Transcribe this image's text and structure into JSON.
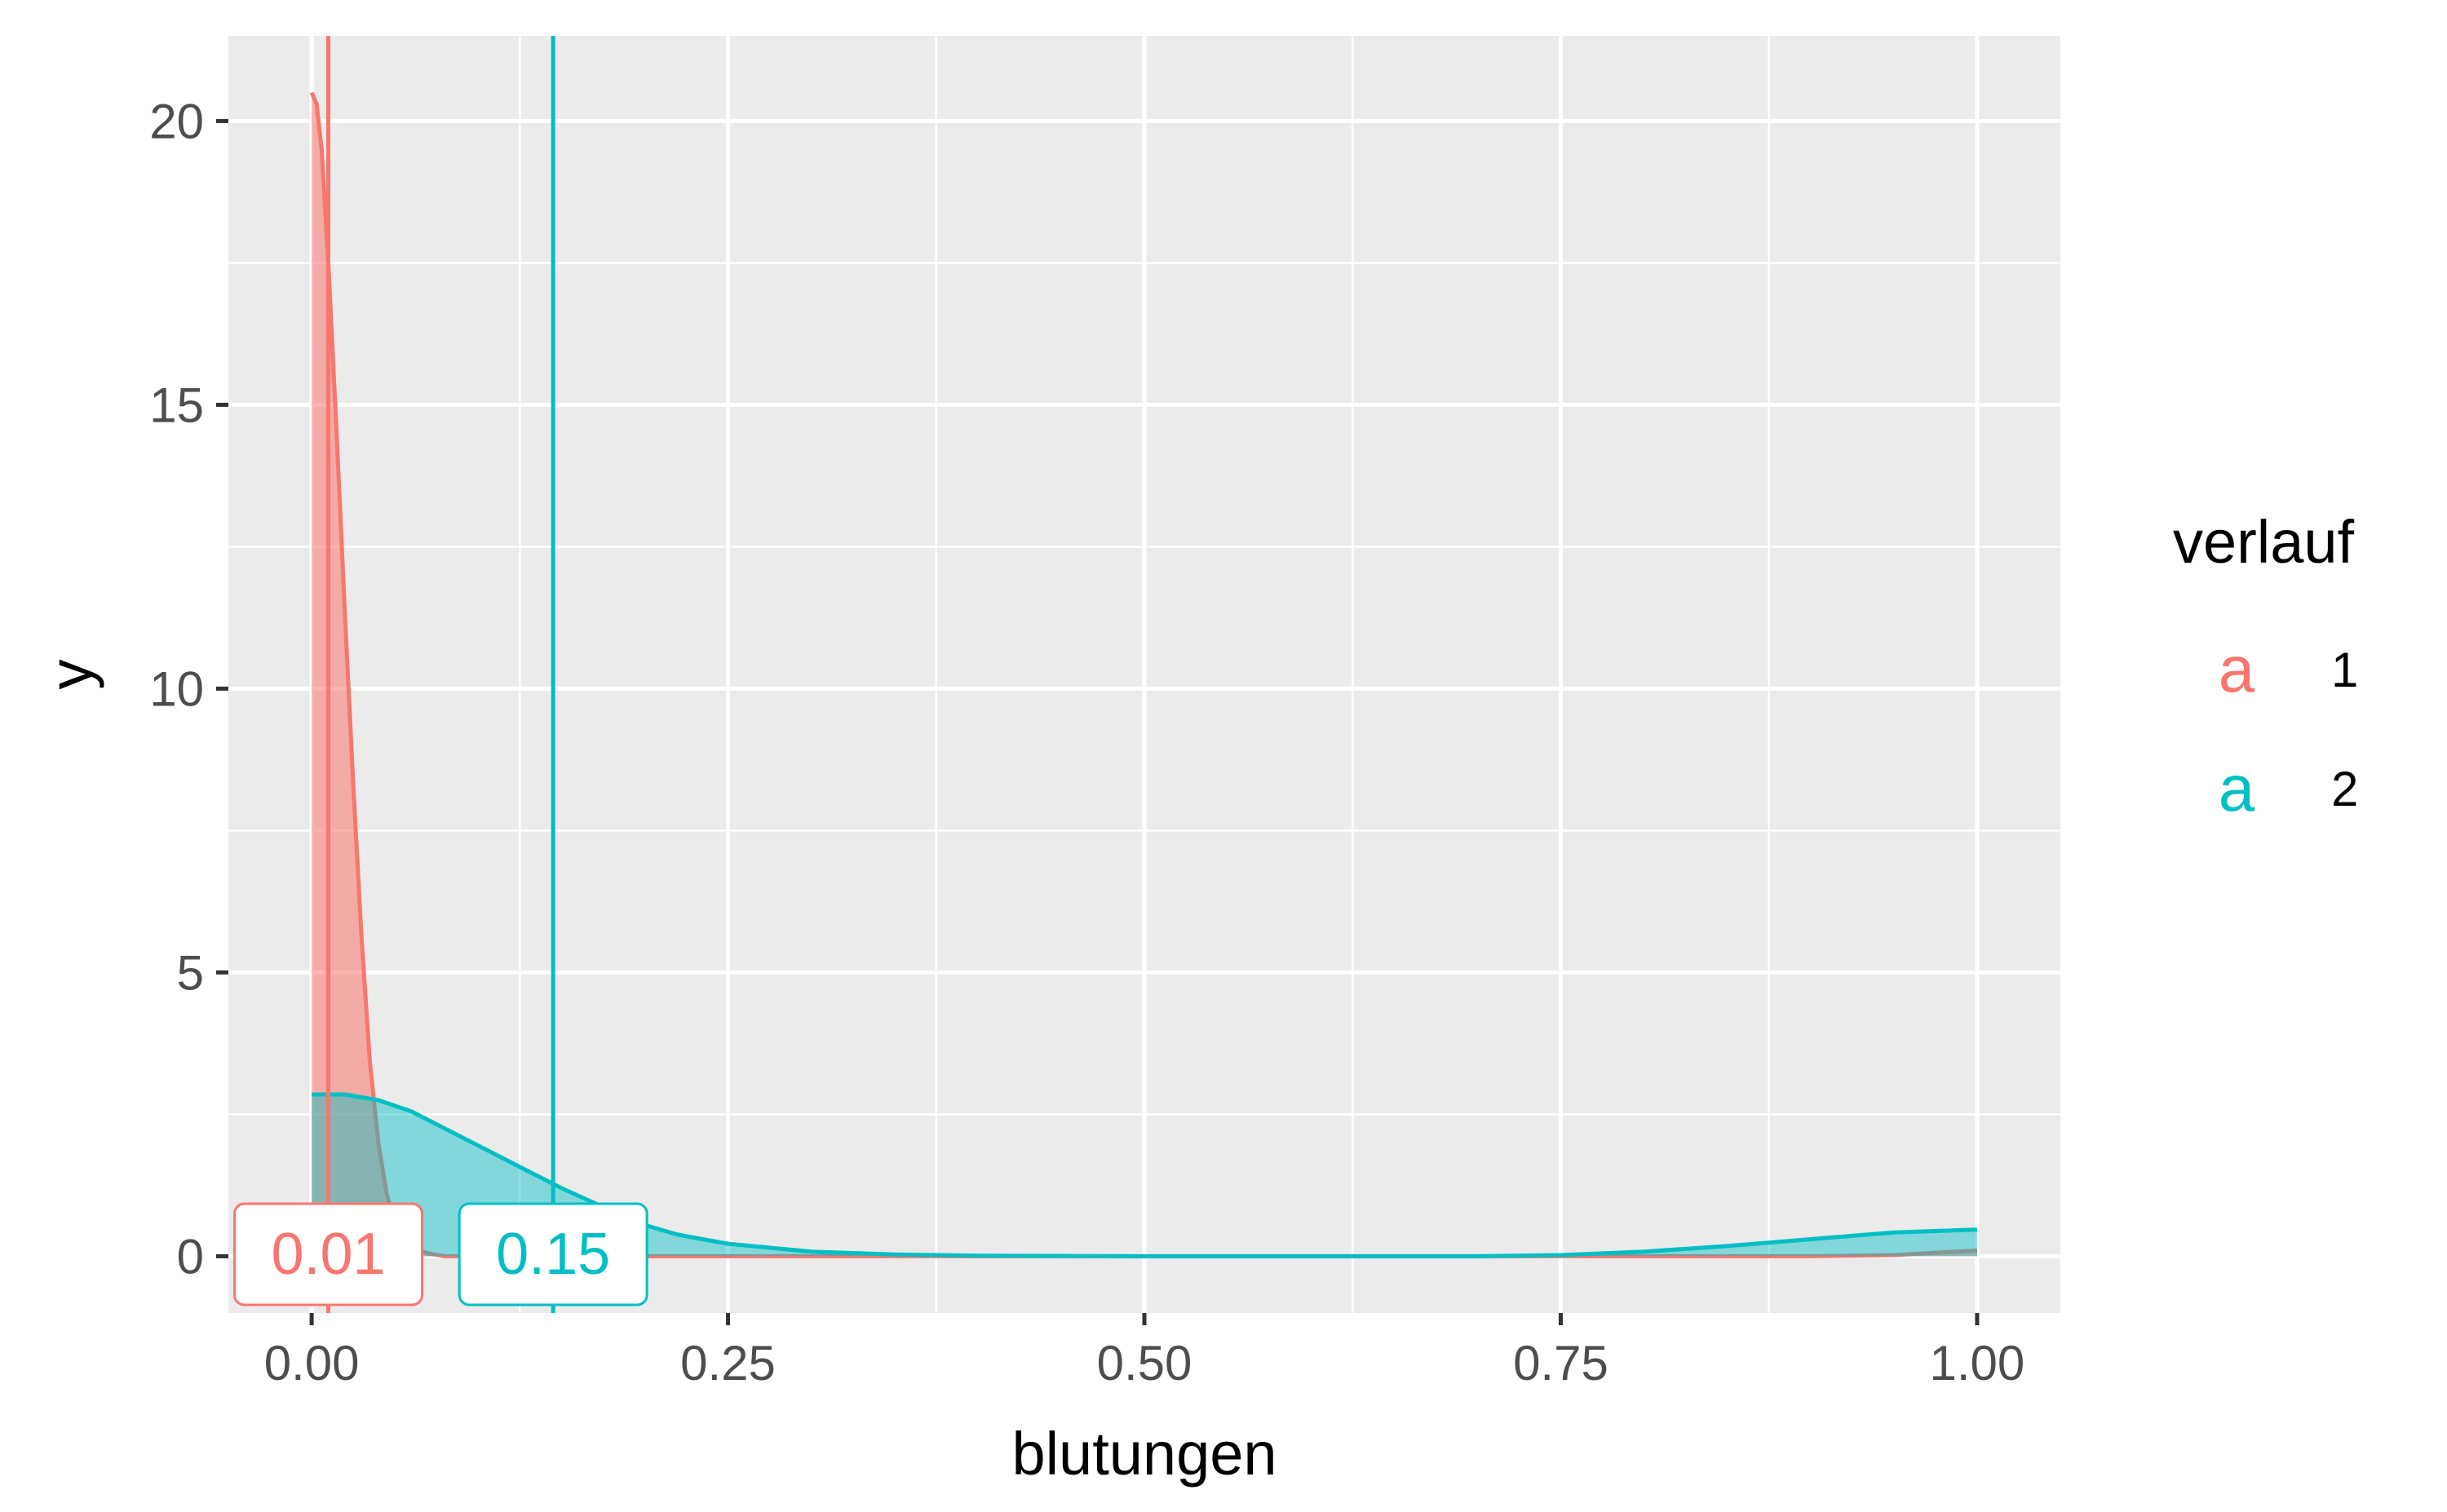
{
  "chart_data": {
    "type": "area",
    "xlabel": "blutungen",
    "ylabel": "y",
    "xlim": [
      -0.05,
      1.05
    ],
    "ylim": [
      -1.0,
      21.5
    ],
    "x_ticks": [
      0.0,
      0.25,
      0.5,
      0.75,
      1.0
    ],
    "x_tick_labels": [
      "0.00",
      "0.25",
      "0.50",
      "0.75",
      "1.00"
    ],
    "y_ticks": [
      0,
      5,
      10,
      15,
      20
    ],
    "y_tick_labels": [
      "0",
      "5",
      "10",
      "15",
      "20"
    ],
    "grid": true,
    "legend": {
      "title": "verlauf",
      "position": "right",
      "entries": [
        {
          "key_glyph": "a",
          "label": "1",
          "color": "#F8766D"
        },
        {
          "key_glyph": "a",
          "label": "2",
          "color": "#00BFC4"
        }
      ]
    },
    "series": [
      {
        "name": "1",
        "color": "#F8766D",
        "line_color": "#F8766D",
        "fill_opacity": 0.55,
        "x": [
          0.0,
          0.003,
          0.006,
          0.01,
          0.015,
          0.02,
          0.025,
          0.03,
          0.035,
          0.04,
          0.045,
          0.05,
          0.06,
          0.07,
          0.08,
          0.1,
          0.15,
          0.2,
          0.3,
          0.4,
          0.5,
          0.6,
          0.7,
          0.8,
          0.9,
          0.95,
          0.98,
          1.0
        ],
        "y": [
          20.5,
          20.3,
          19.5,
          17.5,
          14.5,
          11.3,
          8.3,
          5.6,
          3.4,
          2.0,
          1.1,
          0.55,
          0.15,
          0.05,
          0.0,
          0.0,
          0.0,
          0.0,
          0.0,
          0.0,
          0.0,
          0.0,
          0.0,
          0.0,
          0.0,
          0.02,
          0.07,
          0.1
        ],
        "mean": 0.01,
        "mean_label": "0.01"
      },
      {
        "name": "2",
        "color": "#00BFC4",
        "line_color": "#00BFC4",
        "fill_opacity": 0.45,
        "x": [
          0.0,
          0.02,
          0.04,
          0.06,
          0.08,
          0.1,
          0.12,
          0.15,
          0.18,
          0.2,
          0.22,
          0.25,
          0.3,
          0.35,
          0.4,
          0.5,
          0.6,
          0.7,
          0.75,
          0.8,
          0.85,
          0.9,
          0.95,
          1.0
        ],
        "y": [
          2.85,
          2.85,
          2.75,
          2.55,
          2.25,
          1.95,
          1.65,
          1.2,
          0.8,
          0.55,
          0.38,
          0.22,
          0.08,
          0.03,
          0.01,
          0.0,
          0.0,
          0.0,
          0.02,
          0.08,
          0.18,
          0.3,
          0.42,
          0.47
        ],
        "mean": 0.145,
        "mean_label": "0.15"
      }
    ]
  }
}
